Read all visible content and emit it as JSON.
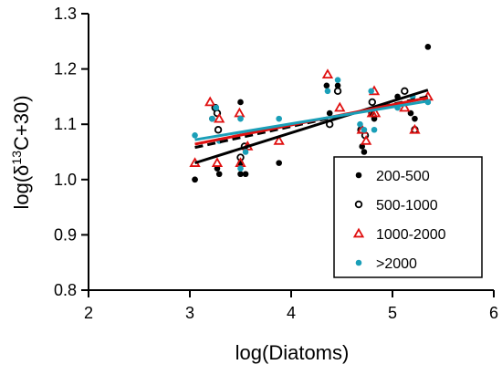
{
  "chart_data": {
    "type": "scatter",
    "x_axis": {
      "label": "log(Diatoms)",
      "min": 2,
      "max": 6,
      "ticks": [
        2,
        3,
        4,
        5,
        6
      ],
      "tick_labels": [
        "2",
        "3",
        "4",
        "5",
        "6"
      ]
    },
    "y_axis": {
      "label_prefix": "log(δ",
      "label_sup": "13",
      "label_suffix": "C+30)",
      "min": 0.8,
      "max": 1.3,
      "ticks": [
        0.8,
        0.9,
        1.0,
        1.1,
        1.2,
        1.3
      ],
      "tick_labels": [
        "0.8",
        "0.9",
        "1.0",
        "1.1",
        "1.2",
        "1.3"
      ]
    },
    "grid": false,
    "legend_position": "bottom-right",
    "series": [
      {
        "name": "200-500",
        "marker": "filled-circle",
        "color": "#000000",
        "points": [
          [
            3.05,
            1.0
          ],
          [
            3.05,
            1.0
          ],
          [
            3.22,
            1.11
          ],
          [
            3.27,
            1.02
          ],
          [
            3.29,
            1.01
          ],
          [
            3.5,
            1.14
          ],
          [
            3.5,
            1.03
          ],
          [
            3.5,
            1.01
          ],
          [
            3.55,
            1.01
          ],
          [
            3.88,
            1.03
          ],
          [
            4.35,
            1.17
          ],
          [
            4.38,
            1.12
          ],
          [
            4.46,
            1.17
          ],
          [
            4.7,
            1.06
          ],
          [
            4.72,
            1.05
          ],
          [
            4.79,
            1.12
          ],
          [
            4.82,
            1.11
          ],
          [
            5.05,
            1.15
          ],
          [
            5.18,
            1.12
          ],
          [
            5.22,
            1.11
          ],
          [
            5.35,
            1.24
          ]
        ],
        "trend": {
          "x": [
            3.05,
            5.35
          ],
          "y": [
            1.03,
            1.162
          ],
          "style": "solid"
        }
      },
      {
        "name": "500-1000",
        "marker": "open-circle",
        "color": "#000000",
        "points": [
          [
            3.25,
            1.13
          ],
          [
            3.27,
            1.12
          ],
          [
            3.28,
            1.09
          ],
          [
            3.5,
            1.04
          ],
          [
            3.54,
            1.06
          ],
          [
            4.38,
            1.1
          ],
          [
            4.46,
            1.16
          ],
          [
            4.69,
            1.09
          ],
          [
            4.73,
            1.08
          ],
          [
            4.8,
            1.14
          ],
          [
            5.12,
            1.16
          ],
          [
            5.22,
            1.09
          ]
        ],
        "trend": {
          "x": [
            3.05,
            5.35
          ],
          "y": [
            1.058,
            1.15
          ],
          "style": "dashed"
        }
      },
      {
        "name": "1000-2000",
        "marker": "open-triangle",
        "color": "#e01010",
        "points": [
          [
            3.05,
            1.03
          ],
          [
            3.2,
            1.14
          ],
          [
            3.27,
            1.03
          ],
          [
            3.29,
            1.11
          ],
          [
            3.49,
            1.12
          ],
          [
            3.5,
            1.03
          ],
          [
            3.57,
            1.06
          ],
          [
            3.88,
            1.07
          ],
          [
            4.36,
            1.19
          ],
          [
            4.48,
            1.13
          ],
          [
            4.7,
            1.09
          ],
          [
            4.74,
            1.07
          ],
          [
            4.8,
            1.12
          ],
          [
            4.82,
            1.16
          ],
          [
            4.83,
            1.12
          ],
          [
            5.12,
            1.13
          ],
          [
            5.22,
            1.09
          ],
          [
            5.35,
            1.15
          ]
        ],
        "trend": {
          "x": [
            3.05,
            5.35
          ],
          "y": [
            1.064,
            1.148
          ],
          "style": "solid"
        }
      },
      {
        "name": ">2000",
        "marker": "filled-circle",
        "color": "#1a9fb8",
        "points": [
          [
            3.05,
            1.08
          ],
          [
            3.22,
            1.11
          ],
          [
            3.26,
            1.13
          ],
          [
            3.29,
            1.07
          ],
          [
            3.5,
            1.11
          ],
          [
            3.5,
            1.02
          ],
          [
            3.55,
            1.05
          ],
          [
            3.88,
            1.11
          ],
          [
            4.36,
            1.16
          ],
          [
            4.46,
            1.18
          ],
          [
            4.68,
            1.1
          ],
          [
            4.72,
            1.09
          ],
          [
            4.79,
            1.16
          ],
          [
            4.82,
            1.09
          ],
          [
            5.05,
            1.13
          ],
          [
            5.2,
            1.15
          ],
          [
            5.35,
            1.14
          ]
        ],
        "trend": {
          "x": [
            3.05,
            5.35
          ],
          "y": [
            1.072,
            1.142
          ],
          "style": "solid"
        }
      }
    ]
  }
}
